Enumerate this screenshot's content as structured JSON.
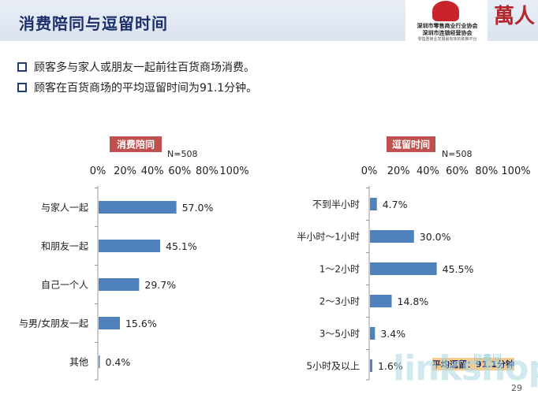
{
  "title": "消费陪同与逗留时间",
  "logo": {
    "line1": "深圳市零售商业行业协会",
    "line2": "深圳市连锁经营协会",
    "line3": "零售连锁业发展最有效的助推平台",
    "mark": "萬人"
  },
  "bullets": [
    "顾客多与家人或朋友一起前往百货商场消费。",
    "顾客在百货商场的平均逗留时间为91.1分钟。"
  ],
  "colors": {
    "bar": "#4f81bd",
    "badge": "#c0504d",
    "title": "#1d2f6b"
  },
  "chart_data": [
    {
      "type": "bar",
      "orientation": "horizontal",
      "title": "消费陪同",
      "n_label": "N=508",
      "categories": [
        "与家人一起",
        "和朋友一起",
        "自己一个人",
        "与男/女朋友一起",
        "其他"
      ],
      "values": [
        57.0,
        45.1,
        29.7,
        15.6,
        0.4
      ],
      "value_labels": [
        "57.0%",
        "45.1%",
        "29.7%",
        "15.6%",
        "0.4%"
      ],
      "xlim": [
        0,
        100
      ],
      "ticks": [
        "0%",
        "20%",
        "40%",
        "60%",
        "80%",
        "100%"
      ],
      "tick_position": "top",
      "grid": false
    },
    {
      "type": "bar",
      "orientation": "horizontal",
      "title": "逗留时间",
      "n_label": "N=508",
      "categories": [
        "不到半小时",
        "半小时～1小时",
        "1～2小时",
        "2～3小时",
        "3～5小时",
        "5小时及以上"
      ],
      "values": [
        4.7,
        30.0,
        45.5,
        14.8,
        3.4,
        1.6
      ],
      "value_labels": [
        "4.7%",
        "30.0%",
        "45.5%",
        "14.8%",
        "3.4%",
        "1.6%"
      ],
      "xlim": [
        0,
        100
      ],
      "ticks": [
        "0%",
        "20%",
        "40%",
        "60%",
        "80%",
        "100%"
      ],
      "tick_position": "top",
      "grid": false,
      "footnote": "平均逗留：91.1分钟"
    }
  ],
  "watermark": "linkshop",
  "watermark_small": "联商网",
  "page_number": "29"
}
